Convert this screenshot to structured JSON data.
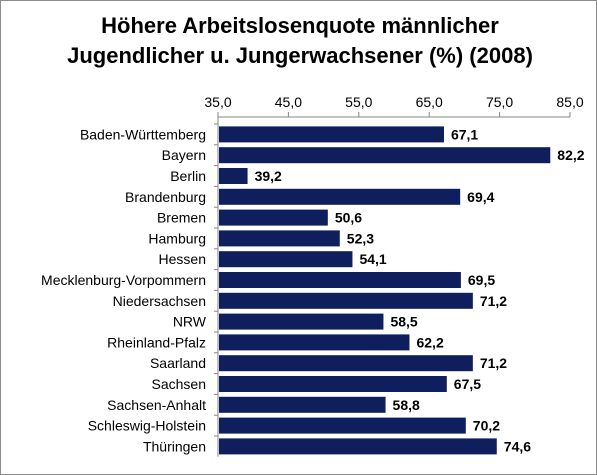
{
  "chart_data": {
    "type": "bar",
    "orientation": "horizontal",
    "title": "Höhere Arbeitslosenquote männlicher Jugendlicher u. Jungerwachsener (%) (2008)",
    "title_lines": [
      "Höhere Arbeitslosenquote männlicher",
      "Jugendlicher u. Jungerwachsener (%) (2008)"
    ],
    "xlabel": "",
    "ylabel": "",
    "xlim": [
      35,
      85
    ],
    "x_ticks": [
      35,
      45,
      55,
      65,
      75,
      85
    ],
    "x_tick_labels": [
      "35,0",
      "45,0",
      "55,0",
      "65,0",
      "75,0",
      "85,0"
    ],
    "axis_position": "top",
    "grid": false,
    "legend": "none",
    "bar_color": "#0f1f5e",
    "categories": [
      "Baden-Württemberg",
      "Bayern",
      "Berlin",
      "Brandenburg",
      "Bremen",
      "Hamburg",
      "Hessen",
      "Mecklenburg-Vorpommern",
      "Niedersachsen",
      "NRW",
      "Rheinland-Pfalz",
      "Saarland",
      "Sachsen",
      "Sachsen-Anhalt",
      "Schleswig-Holstein",
      "Thüringen"
    ],
    "values": [
      67.1,
      82.2,
      39.2,
      69.4,
      50.6,
      52.3,
      54.1,
      69.5,
      71.2,
      58.5,
      62.2,
      71.2,
      67.5,
      58.8,
      70.2,
      74.6
    ],
    "value_labels": [
      "67,1",
      "82,2",
      "39,2",
      "69,4",
      "50,6",
      "52,3",
      "54,1",
      "69,5",
      "71,2",
      "58,5",
      "62,2",
      "71,2",
      "67,5",
      "58,8",
      "70,2",
      "74,6"
    ]
  }
}
